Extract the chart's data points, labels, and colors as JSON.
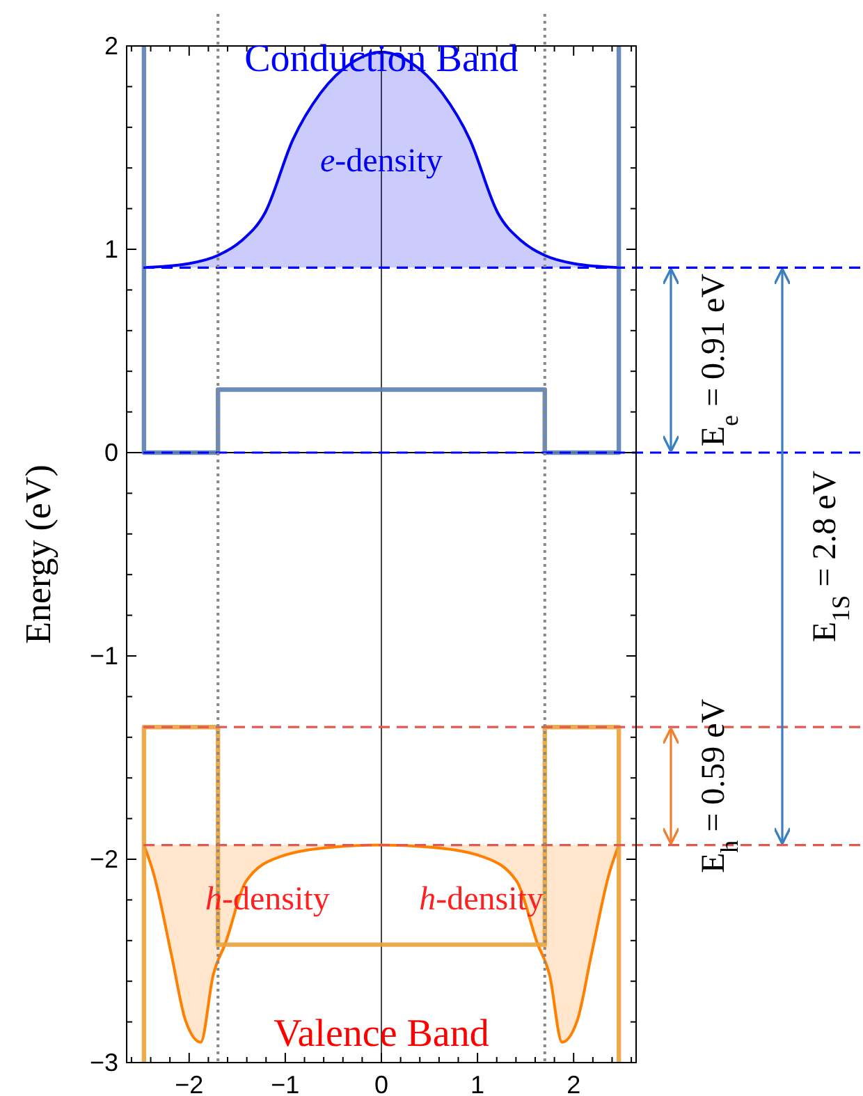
{
  "chart_data": {
    "type": "line",
    "ylabel": "Energy (eV)",
    "xlim": [
      -2.65,
      2.65
    ],
    "ylim": [
      -3,
      2
    ],
    "xticks": [
      -2,
      -1,
      0,
      1,
      2,
      {
        "value": -2.6,
        "label": null
      },
      {
        "value": -2.4,
        "label": null
      },
      {
        "value": -2.2,
        "label": null
      },
      {
        "value": -1.8,
        "label": null
      },
      {
        "value": -1.6,
        "label": null
      },
      {
        "value": -1.4,
        "label": null
      },
      {
        "value": -1.2,
        "label": null
      },
      {
        "value": -0.8,
        "label": null
      },
      {
        "value": -0.6,
        "label": null
      },
      {
        "value": -0.4,
        "label": null
      },
      {
        "value": -0.2,
        "label": null
      },
      {
        "value": 0.2,
        "label": null
      },
      {
        "value": 0.4,
        "label": null
      },
      {
        "value": 0.6,
        "label": null
      },
      {
        "value": 0.8,
        "label": null
      },
      {
        "value": 1.2,
        "label": null
      },
      {
        "value": 1.4,
        "label": null
      },
      {
        "value": 1.6,
        "label": null
      },
      {
        "value": 1.8,
        "label": null
      },
      {
        "value": 2.2,
        "label": null
      },
      {
        "value": 2.4,
        "label": null
      },
      {
        "value": 2.6,
        "label": null
      }
    ],
    "yticks": [
      -3,
      -2,
      -1,
      0,
      1,
      2,
      {
        "value": -2.8,
        "label": null
      },
      {
        "value": -2.6,
        "label": null
      },
      {
        "value": -2.4,
        "label": null
      },
      {
        "value": -2.2,
        "label": null
      },
      {
        "value": -1.8,
        "label": null
      },
      {
        "value": -1.6,
        "label": null
      },
      {
        "value": -1.4,
        "label": null
      },
      {
        "value": -1.2,
        "label": null
      },
      {
        "value": -0.8,
        "label": null
      },
      {
        "value": -0.6,
        "label": null
      },
      {
        "value": -0.4,
        "label": null
      },
      {
        "value": -0.2,
        "label": null
      },
      {
        "value": 0.2,
        "label": null
      },
      {
        "value": 0.4,
        "label": null
      },
      {
        "value": 0.6,
        "label": null
      },
      {
        "value": 0.8,
        "label": null
      },
      {
        "value": 1.2,
        "label": null
      },
      {
        "value": 1.4,
        "label": null
      },
      {
        "value": 1.6,
        "label": null
      },
      {
        "value": 1.8,
        "label": null
      }
    ],
    "grid": false,
    "legend": false,
    "series": [
      {
        "color": "#5b80b2",
        "x": [
          -2.47,
          -2.47,
          -1.7,
          -1.7,
          1.7,
          1.7,
          2.47,
          2.47
        ],
        "values": [
          2,
          0,
          0,
          0.31,
          0.31,
          0,
          0,
          2
        ]
      },
      {
        "color": "#e9a23b",
        "x": [
          -2.47,
          -2.47,
          -1.7,
          -1.7,
          1.7,
          1.7,
          2.47,
          2.47
        ],
        "values": [
          -3,
          -1.35,
          -1.35,
          -2.42,
          -2.42,
          -1.35,
          -1.35,
          -3
        ]
      },
      {
        "type": "area",
        "name": "e-density",
        "color": "#0000ee",
        "x": [
          -2.47,
          -2.0,
          -1.7,
          -1.46,
          -1.21,
          -0.92,
          -0.63,
          -0.3,
          0,
          0.3,
          0.63,
          0.92,
          1.21,
          1.46,
          1.7,
          2.0,
          2.47
        ],
        "values": [
          0.91,
          0.93,
          0.97,
          1.04,
          1.18,
          1.54,
          1.77,
          1.92,
          1.97,
          1.92,
          1.77,
          1.54,
          1.18,
          1.04,
          0.97,
          0.93,
          0.91
        ]
      },
      {
        "type": "area",
        "name": "h-density",
        "color": "#ff8000",
        "x": [
          -2.47,
          -2.37,
          -2.18,
          -2.04,
          -1.88,
          -1.75,
          -1.62,
          -1.41,
          -1.07,
          -0.49,
          0,
          0.49,
          1.07,
          1.41,
          1.62,
          1.75,
          1.88,
          2.04,
          2.18,
          2.37,
          2.47
        ],
        "values": [
          -1.93,
          -2.07,
          -2.48,
          -2.79,
          -2.9,
          -2.57,
          -2.41,
          -2.11,
          -1.99,
          -1.94,
          -1.93,
          -1.94,
          -1.99,
          -2.11,
          -2.41,
          -2.57,
          -2.9,
          -2.79,
          -2.48,
          -2.07,
          -1.93
        ]
      }
    ],
    "ref_lines": [
      {
        "axis": "y",
        "value": 0.91,
        "color": "#0000ff",
        "line_style": "dashed"
      },
      {
        "axis": "y",
        "value": 0,
        "color": "#0000ff",
        "line_style": "dashed"
      },
      {
        "axis": "y",
        "value": -1.35,
        "color": "#e05a50",
        "line_style": "dashed"
      },
      {
        "axis": "y",
        "value": -1.93,
        "color": "#e05a50",
        "line_style": "dashed"
      },
      {
        "axis": "x",
        "value": -1.7,
        "color": "#888888",
        "line_style": "dotted"
      },
      {
        "axis": "x",
        "value": 1.7,
        "color": "#888888",
        "line_style": "dotted"
      }
    ],
    "annotations": [
      "Conduction Band",
      "Valence Band",
      "E$_{e}$ = 0.91 eV",
      "E$_{h}$ = 0.59 eV",
      "E$_{1S}$ = 2.8 eV"
    ]
  }
}
